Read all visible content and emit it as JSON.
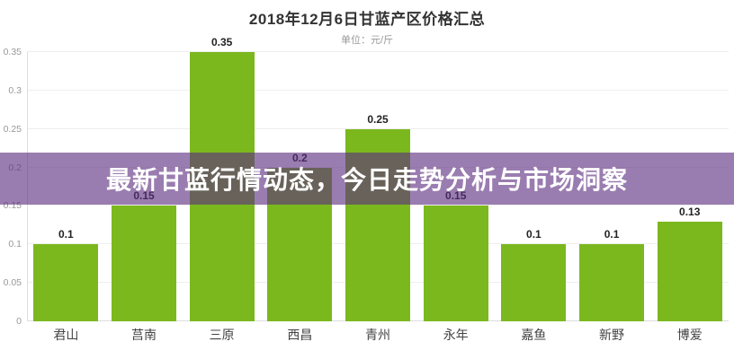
{
  "header": {
    "title": "2018年12月6日甘蓝产区价格汇总",
    "subtitle": "单位：元/斤"
  },
  "banner": {
    "text": "最新甘蓝行情动态，今日走势分析与市场洞察"
  },
  "colors": {
    "bar": "#7bb81e",
    "banner_overlay": "rgba(92,45,128,0.62)",
    "grid_line": "#eeeeee",
    "axis_line": "#dddddd",
    "value_label": "#222222",
    "tick_label": "#999999",
    "category_label": "#444444",
    "title_text": "#333333",
    "banner_text": "#ffffff"
  },
  "chart_data": {
    "type": "bar",
    "title": "2018年12月6日甘蓝产区价格汇总",
    "unit": "元/斤",
    "categories": [
      "君山",
      "莒南",
      "三原",
      "西昌",
      "青州",
      "永年",
      "嘉鱼",
      "新野",
      "博爱"
    ],
    "values": [
      0.1,
      0.15,
      0.35,
      0.2,
      0.25,
      0.15,
      0.1,
      0.1,
      0.13
    ],
    "value_labels": [
      "0.1",
      "0.15",
      "0.35",
      "0.2",
      "0.25",
      "0.15",
      "0.1",
      "0.1",
      "0.13"
    ],
    "ylim": [
      0,
      0.35
    ],
    "yticks": [
      0,
      0.05,
      0.1,
      0.15,
      0.2,
      0.25,
      0.3,
      0.35
    ],
    "ytick_labels": [
      "0",
      "0.05",
      "0.1",
      "0.15",
      "0.2",
      "0.25",
      "0.3",
      "0.35"
    ],
    "grid": true,
    "legend": "none",
    "xlabel": "",
    "ylabel": ""
  }
}
